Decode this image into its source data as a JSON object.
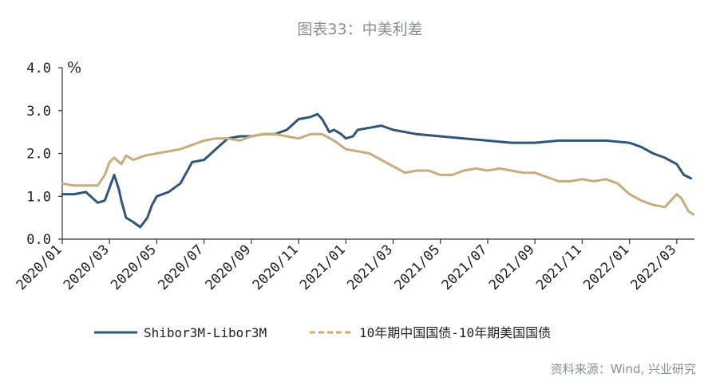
{
  "title": "图表33：中美利差",
  "source": "资料来源：Wind, 兴业研究",
  "colors": {
    "series1": "#2f5577",
    "series2": "#c8ac7b",
    "axis": "#333333"
  },
  "chart_data": {
    "type": "line",
    "yunit": "%",
    "ylim": [
      0.0,
      4.0
    ],
    "yticks": [
      "4.0",
      "3.0",
      "2.0",
      "1.0",
      "0.0"
    ],
    "xticks": [
      "2020/01",
      "2020/03",
      "2020/05",
      "2020/07",
      "2020/09",
      "2020/11",
      "2021/01",
      "2021/03",
      "2021/05",
      "2021/07",
      "2021/09",
      "2021/11",
      "2022/01",
      "2022/03"
    ],
    "xlim": [
      "2020/01",
      "2022/03.75"
    ],
    "legend_position": "bottom",
    "series": [
      {
        "name": "Shibor3M-Libor3M",
        "style": "solid",
        "points": [
          [
            "2020/01",
            1.05
          ],
          [
            "2020/01.5",
            1.05
          ],
          [
            "2020/02",
            1.1
          ],
          [
            "2020/02.5",
            0.85
          ],
          [
            "2020/02.8",
            0.9
          ],
          [
            "2020/03",
            1.2
          ],
          [
            "2020/03.2",
            1.5
          ],
          [
            "2020/03.4",
            1.15
          ],
          [
            "2020/03.5",
            0.9
          ],
          [
            "2020/03.7",
            0.5
          ],
          [
            "2020/04",
            0.4
          ],
          [
            "2020/04.3",
            0.28
          ],
          [
            "2020/04.6",
            0.5
          ],
          [
            "2020/04.8",
            0.8
          ],
          [
            "2020/05",
            1.0
          ],
          [
            "2020/05.5",
            1.1
          ],
          [
            "2020/06",
            1.3
          ],
          [
            "2020/06.5",
            1.8
          ],
          [
            "2020/07",
            1.85
          ],
          [
            "2020/07.5",
            2.1
          ],
          [
            "2020/08",
            2.35
          ],
          [
            "2020/08.5",
            2.4
          ],
          [
            "2020/09",
            2.4
          ],
          [
            "2020/09.5",
            2.45
          ],
          [
            "2020/10",
            2.45
          ],
          [
            "2020/10.5",
            2.55
          ],
          [
            "2020/11",
            2.8
          ],
          [
            "2020/11.5",
            2.85
          ],
          [
            "2020/11.8",
            2.92
          ],
          [
            "2020/12",
            2.8
          ],
          [
            "2020/12.3",
            2.5
          ],
          [
            "2020/12.5",
            2.55
          ],
          [
            "2020/12.8",
            2.45
          ],
          [
            "2021/01",
            2.35
          ],
          [
            "2021/01.3",
            2.4
          ],
          [
            "2021/01.5",
            2.55
          ],
          [
            "2021/02",
            2.6
          ],
          [
            "2021/02.5",
            2.65
          ],
          [
            "2021/03",
            2.55
          ],
          [
            "2021/04",
            2.45
          ],
          [
            "2021/05",
            2.4
          ],
          [
            "2021/06",
            2.35
          ],
          [
            "2021/07",
            2.3
          ],
          [
            "2021/08",
            2.25
          ],
          [
            "2021/09",
            2.25
          ],
          [
            "2021/10",
            2.3
          ],
          [
            "2021/11",
            2.3
          ],
          [
            "2021/12",
            2.3
          ],
          [
            "2022/01",
            2.25
          ],
          [
            "2022/01.5",
            2.15
          ],
          [
            "2022/02",
            2.0
          ],
          [
            "2022/02.5",
            1.9
          ],
          [
            "2022/03",
            1.75
          ],
          [
            "2022/03.3",
            1.5
          ],
          [
            "2022/03.6",
            1.42
          ]
        ]
      },
      {
        "name": "10年期中国国债-10年期美国国债",
        "style": "dashed",
        "points": [
          [
            "2020/01",
            1.3
          ],
          [
            "2020/01.5",
            1.25
          ],
          [
            "2020/02",
            1.25
          ],
          [
            "2020/02.5",
            1.25
          ],
          [
            "2020/02.8",
            1.5
          ],
          [
            "2020/03",
            1.8
          ],
          [
            "2020/03.2",
            1.9
          ],
          [
            "2020/03.5",
            1.75
          ],
          [
            "2020/03.7",
            1.95
          ],
          [
            "2020/04",
            1.85
          ],
          [
            "2020/04.5",
            1.95
          ],
          [
            "2020/05",
            2.0
          ],
          [
            "2020/05.5",
            2.05
          ],
          [
            "2020/06",
            2.1
          ],
          [
            "2020/06.5",
            2.2
          ],
          [
            "2020/07",
            2.3
          ],
          [
            "2020/07.5",
            2.35
          ],
          [
            "2020/08",
            2.35
          ],
          [
            "2020/08.5",
            2.3
          ],
          [
            "2020/09",
            2.4
          ],
          [
            "2020/09.5",
            2.45
          ],
          [
            "2020/10",
            2.45
          ],
          [
            "2020/10.5",
            2.4
          ],
          [
            "2020/11",
            2.35
          ],
          [
            "2020/11.5",
            2.45
          ],
          [
            "2020/12",
            2.45
          ],
          [
            "2020/12.5",
            2.3
          ],
          [
            "2021/01",
            2.1
          ],
          [
            "2021/01.5",
            2.05
          ],
          [
            "2021/02",
            2.0
          ],
          [
            "2021/02.5",
            1.85
          ],
          [
            "2021/03",
            1.7
          ],
          [
            "2021/03.5",
            1.55
          ],
          [
            "2021/04",
            1.6
          ],
          [
            "2021/04.5",
            1.6
          ],
          [
            "2021/05",
            1.5
          ],
          [
            "2021/05.5",
            1.5
          ],
          [
            "2021/06",
            1.6
          ],
          [
            "2021/06.5",
            1.65
          ],
          [
            "2021/07",
            1.6
          ],
          [
            "2021/07.5",
            1.65
          ],
          [
            "2021/08",
            1.6
          ],
          [
            "2021/08.5",
            1.55
          ],
          [
            "2021/09",
            1.55
          ],
          [
            "2021/09.5",
            1.45
          ],
          [
            "2021/10",
            1.35
          ],
          [
            "2021/10.5",
            1.35
          ],
          [
            "2021/11",
            1.4
          ],
          [
            "2021/11.5",
            1.35
          ],
          [
            "2021/12",
            1.4
          ],
          [
            "2021/12.5",
            1.3
          ],
          [
            "2022/01",
            1.05
          ],
          [
            "2022/01.5",
            0.9
          ],
          [
            "2022/02",
            0.8
          ],
          [
            "2022/02.5",
            0.75
          ],
          [
            "2022/03",
            1.05
          ],
          [
            "2022/03.2",
            0.95
          ],
          [
            "2022/03.5",
            0.65
          ],
          [
            "2022/03.7",
            0.58
          ]
        ]
      }
    ]
  }
}
